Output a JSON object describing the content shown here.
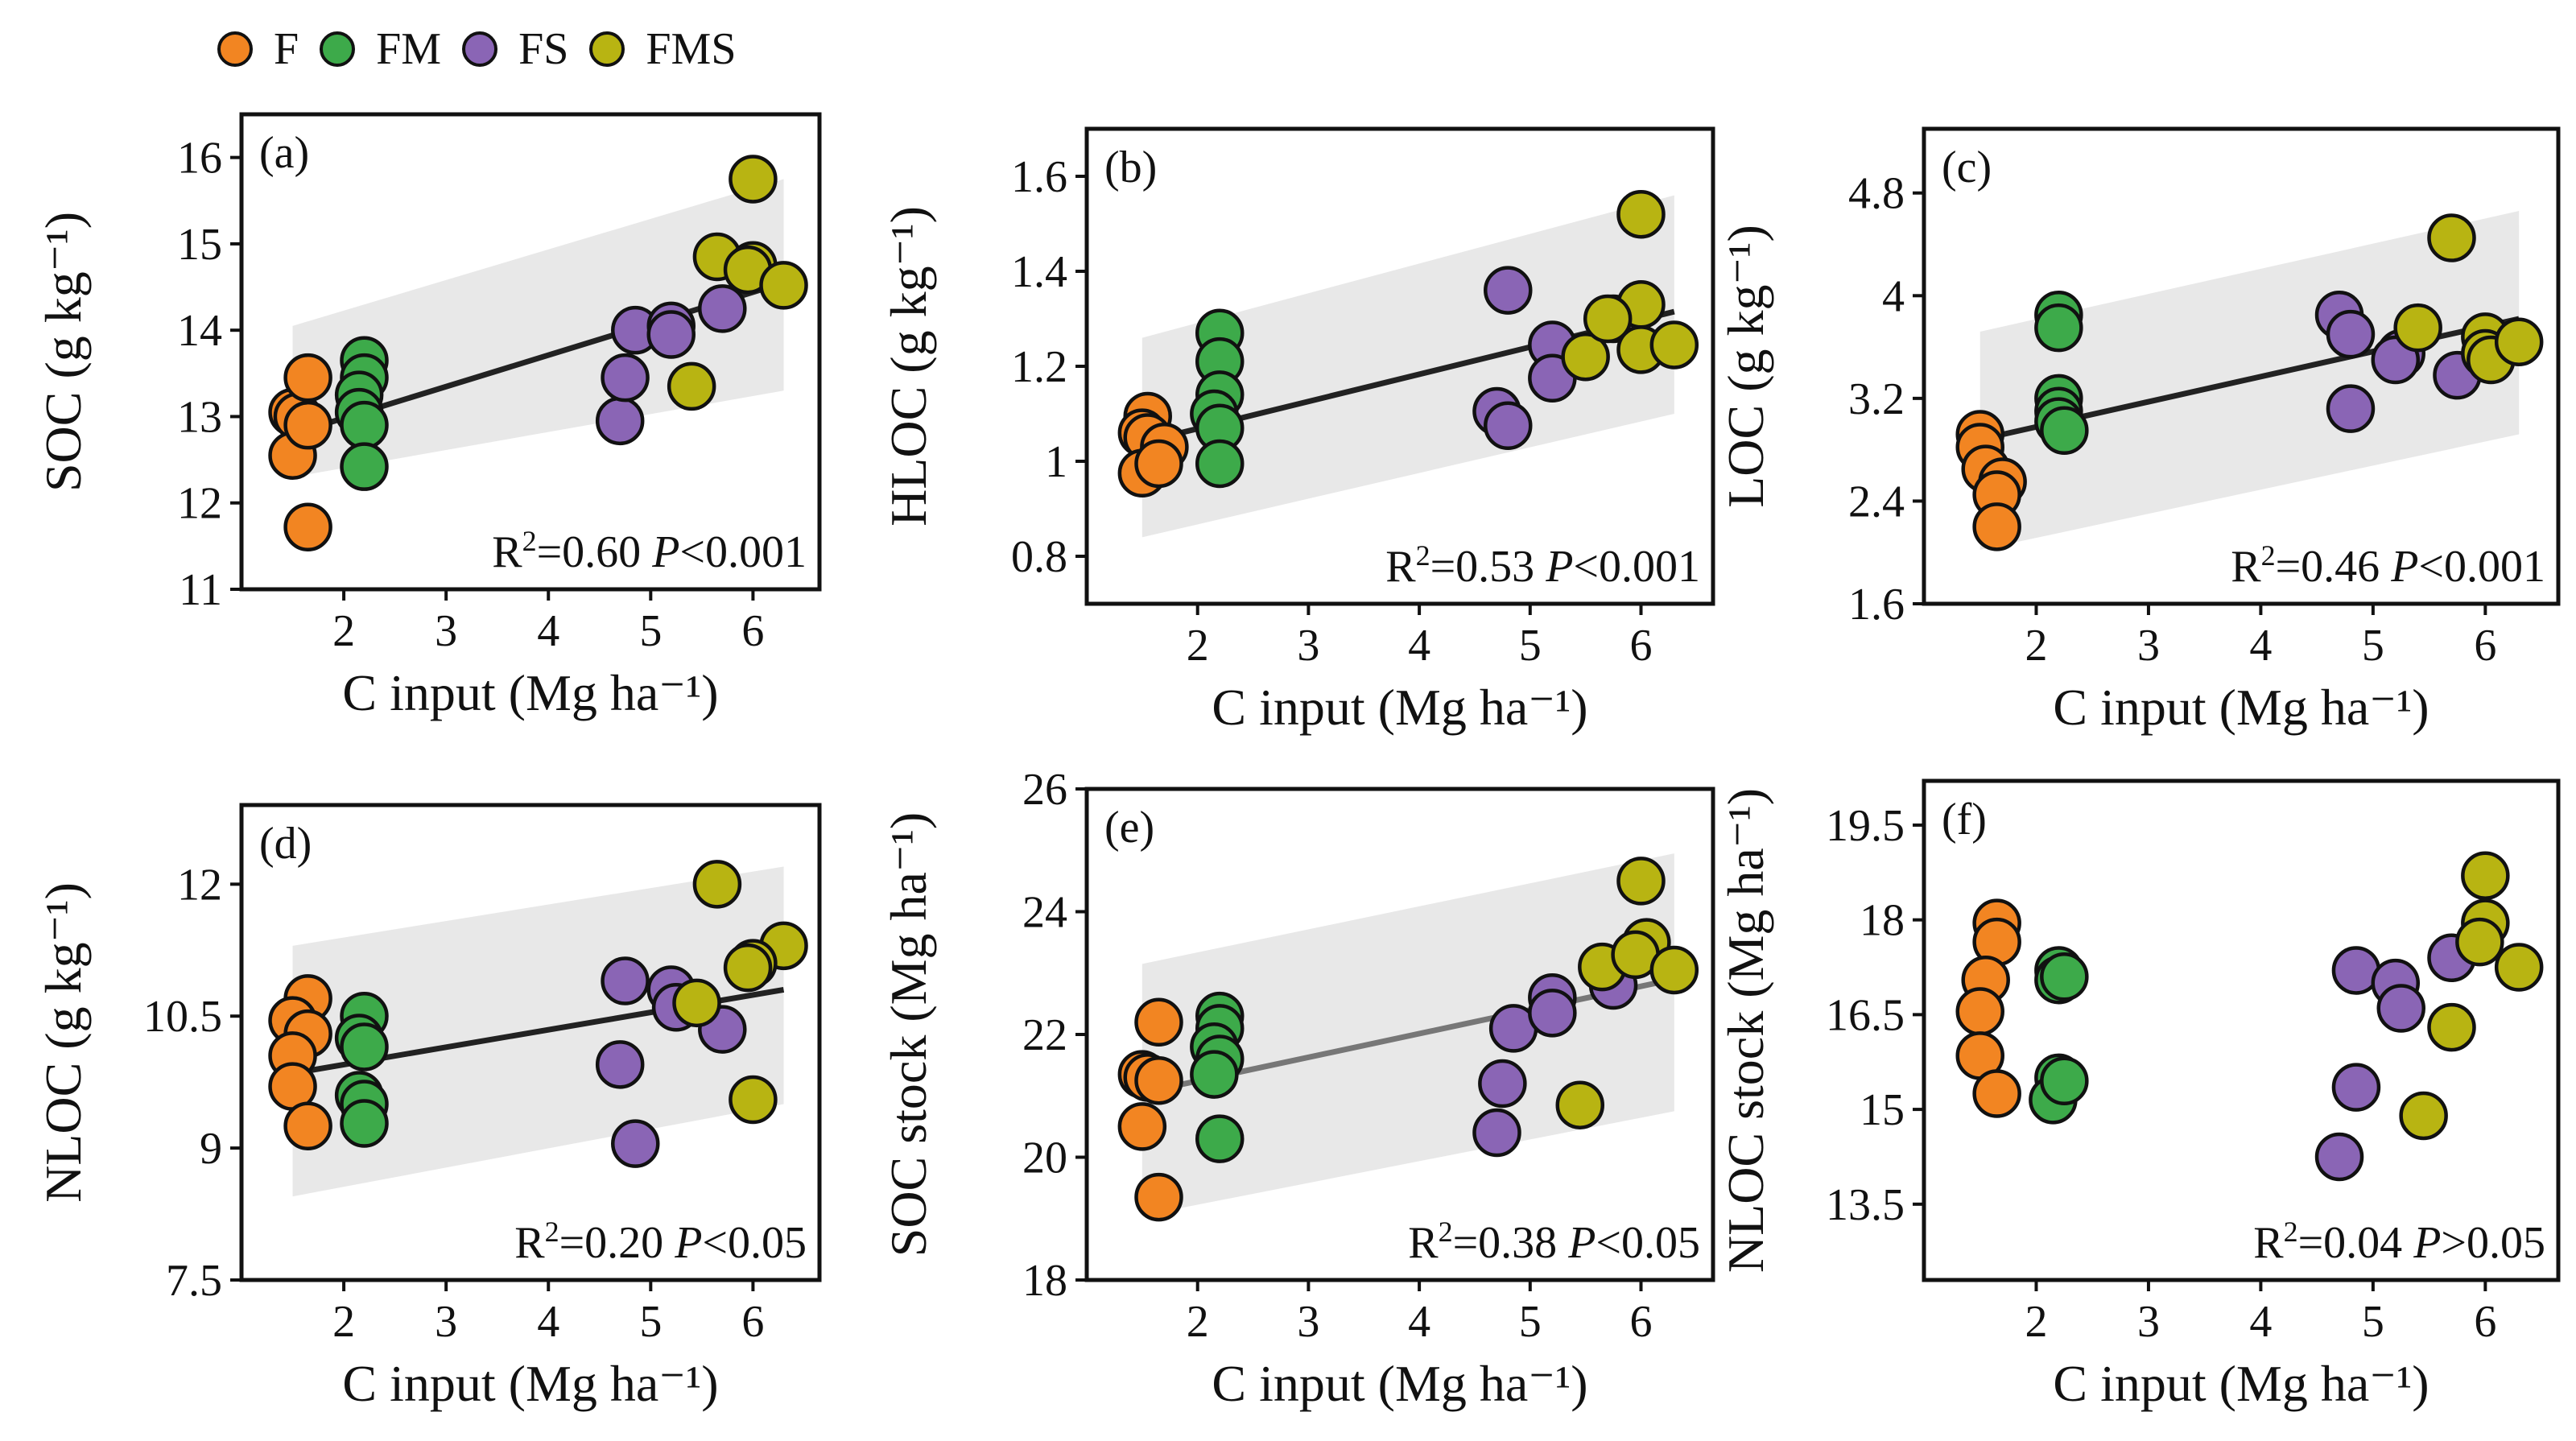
{
  "legend": [
    {
      "key": "F",
      "label": "F",
      "color": "#F28522"
    },
    {
      "key": "FM",
      "label": "FM",
      "color": "#3DAA4A"
    },
    {
      "key": "FS",
      "label": "FS",
      "color": "#8A65B5"
    },
    {
      "key": "FMS",
      "label": "FMS",
      "color": "#B8B412"
    }
  ],
  "chart_data": [
    {
      "panel": "(a)",
      "type": "scatter",
      "xlabel": "C input (Mg ha⁻¹)",
      "ylabel": "SOC (g kg⁻¹)",
      "xlim": [
        1.0,
        6.65
      ],
      "ylim": [
        11,
        16.5
      ],
      "xticks": [
        2,
        3,
        4,
        5,
        6
      ],
      "yticks": [
        11,
        12,
        13,
        14,
        15,
        16
      ],
      "r2": "0.60",
      "p": "<0.001",
      "fit": [
        [
          1.5,
          12.8
        ],
        [
          6.3,
          14.55
        ]
      ],
      "band": [
        [
          1.5,
          12.3,
          14.05
        ],
        [
          6.3,
          13.3,
          15.75
        ]
      ],
      "lineColor": "#222222",
      "points": [
        {
          "g": "F",
          "x": 1.5,
          "y": 13.05
        },
        {
          "g": "F",
          "x": 1.55,
          "y": 13.0
        },
        {
          "g": "F",
          "x": 1.5,
          "y": 12.55
        },
        {
          "g": "F",
          "x": 1.65,
          "y": 12.9
        },
        {
          "g": "F",
          "x": 1.65,
          "y": 13.45
        },
        {
          "g": "F",
          "x": 1.65,
          "y": 11.72
        },
        {
          "g": "FM",
          "x": 2.2,
          "y": 13.65
        },
        {
          "g": "FM",
          "x": 2.2,
          "y": 13.45
        },
        {
          "g": "FM",
          "x": 2.15,
          "y": 13.25
        },
        {
          "g": "FM",
          "x": 2.15,
          "y": 13.05
        },
        {
          "g": "FM",
          "x": 2.2,
          "y": 12.9
        },
        {
          "g": "FM",
          "x": 2.2,
          "y": 12.42
        },
        {
          "g": "FS",
          "x": 4.7,
          "y": 12.95
        },
        {
          "g": "FS",
          "x": 4.75,
          "y": 13.45
        },
        {
          "g": "FS",
          "x": 4.85,
          "y": 14.0
        },
        {
          "g": "FS",
          "x": 5.2,
          "y": 14.05
        },
        {
          "g": "FS",
          "x": 5.2,
          "y": 13.95
        },
        {
          "g": "FS",
          "x": 5.7,
          "y": 14.25
        },
        {
          "g": "FMS",
          "x": 5.4,
          "y": 13.35
        },
        {
          "g": "FMS",
          "x": 5.65,
          "y": 14.85
        },
        {
          "g": "FMS",
          "x": 6.0,
          "y": 15.75
        },
        {
          "g": "FMS",
          "x": 6.0,
          "y": 14.75
        },
        {
          "g": "FMS",
          "x": 5.95,
          "y": 14.7
        },
        {
          "g": "FMS",
          "x": 6.3,
          "y": 14.52
        }
      ]
    },
    {
      "panel": "(b)",
      "type": "scatter",
      "xlabel": "C input (Mg ha⁻¹)",
      "ylabel": "HLOC (g kg⁻¹)",
      "xlim": [
        1.0,
        6.65
      ],
      "ylim": [
        0.7,
        1.7
      ],
      "xticks": [
        2,
        3,
        4,
        5,
        6
      ],
      "yticks": [
        0.8,
        1.0,
        1.2,
        1.4,
        1.6
      ],
      "r2": "0.53",
      "p": "<0.001",
      "fit": [
        [
          1.5,
          1.04
        ],
        [
          6.3,
          1.315
        ]
      ],
      "band": [
        [
          1.5,
          0.84,
          1.26
        ],
        [
          6.3,
          1.1,
          1.56
        ]
      ],
      "lineColor": "#222222",
      "points": [
        {
          "g": "F",
          "x": 1.55,
          "y": 1.095
        },
        {
          "g": "F",
          "x": 1.5,
          "y": 1.06
        },
        {
          "g": "F",
          "x": 1.55,
          "y": 1.05
        },
        {
          "g": "F",
          "x": 1.7,
          "y": 1.03
        },
        {
          "g": "F",
          "x": 1.5,
          "y": 0.975
        },
        {
          "g": "F",
          "x": 1.65,
          "y": 0.995
        },
        {
          "g": "FM",
          "x": 2.2,
          "y": 1.27
        },
        {
          "g": "FM",
          "x": 2.2,
          "y": 1.21
        },
        {
          "g": "FM",
          "x": 2.2,
          "y": 1.14
        },
        {
          "g": "FM",
          "x": 2.15,
          "y": 1.1
        },
        {
          "g": "FM",
          "x": 2.2,
          "y": 1.07
        },
        {
          "g": "FM",
          "x": 2.2,
          "y": 0.995
        },
        {
          "g": "FS",
          "x": 4.8,
          "y": 1.36
        },
        {
          "g": "FS",
          "x": 4.7,
          "y": 1.105
        },
        {
          "g": "FS",
          "x": 4.8,
          "y": 1.075
        },
        {
          "g": "FS",
          "x": 5.2,
          "y": 1.245
        },
        {
          "g": "FS",
          "x": 5.2,
          "y": 1.175
        },
        {
          "g": "FS",
          "x": 5.75,
          "y": 1.3
        },
        {
          "g": "FMS",
          "x": 5.5,
          "y": 1.22
        },
        {
          "g": "FMS",
          "x": 6.0,
          "y": 1.52
        },
        {
          "g": "FMS",
          "x": 6.0,
          "y": 1.33
        },
        {
          "g": "FMS",
          "x": 5.7,
          "y": 1.3
        },
        {
          "g": "FMS",
          "x": 6.0,
          "y": 1.235
        },
        {
          "g": "FMS",
          "x": 6.3,
          "y": 1.245
        }
      ]
    },
    {
      "panel": "(c)",
      "type": "scatter",
      "xlabel": "C input (Mg ha⁻¹)",
      "ylabel": "LOC  (g kg⁻¹)",
      "xlim": [
        1.0,
        6.65
      ],
      "ylim": [
        1.6,
        5.3
      ],
      "xticks": [
        2,
        3,
        4,
        5,
        6
      ],
      "yticks": [
        1.6,
        2.4,
        3.2,
        4.0,
        4.8
      ],
      "r2": "0.46",
      "p": "<0.001",
      "fit": [
        [
          1.5,
          2.88
        ],
        [
          6.3,
          3.82
        ]
      ],
      "band": [
        [
          1.5,
          2.02,
          3.72
        ],
        [
          6.3,
          2.92,
          4.66
        ]
      ],
      "lineColor": "#222222",
      "points": [
        {
          "g": "F",
          "x": 1.5,
          "y": 2.92
        },
        {
          "g": "F",
          "x": 1.5,
          "y": 2.82
        },
        {
          "g": "F",
          "x": 1.55,
          "y": 2.65
        },
        {
          "g": "F",
          "x": 1.7,
          "y": 2.55
        },
        {
          "g": "F",
          "x": 1.65,
          "y": 2.45
        },
        {
          "g": "F",
          "x": 1.65,
          "y": 2.2
        },
        {
          "g": "FM",
          "x": 2.2,
          "y": 3.85
        },
        {
          "g": "FM",
          "x": 2.2,
          "y": 3.75
        },
        {
          "g": "FM",
          "x": 2.2,
          "y": 3.2
        },
        {
          "g": "FM",
          "x": 2.2,
          "y": 3.1
        },
        {
          "g": "FM",
          "x": 2.2,
          "y": 3.02
        },
        {
          "g": "FM",
          "x": 2.25,
          "y": 2.95
        },
        {
          "g": "FS",
          "x": 4.7,
          "y": 3.85
        },
        {
          "g": "FS",
          "x": 4.8,
          "y": 3.7
        },
        {
          "g": "FS",
          "x": 5.25,
          "y": 3.55
        },
        {
          "g": "FS",
          "x": 5.2,
          "y": 3.5
        },
        {
          "g": "FS",
          "x": 4.8,
          "y": 3.12
        },
        {
          "g": "FS",
          "x": 5.75,
          "y": 3.38
        },
        {
          "g": "FMS",
          "x": 5.4,
          "y": 3.75
        },
        {
          "g": "FMS",
          "x": 5.7,
          "y": 4.45
        },
        {
          "g": "FMS",
          "x": 6.0,
          "y": 3.68
        },
        {
          "g": "FMS",
          "x": 6.0,
          "y": 3.55
        },
        {
          "g": "FMS",
          "x": 6.05,
          "y": 3.5
        },
        {
          "g": "FMS",
          "x": 6.3,
          "y": 3.64
        }
      ]
    },
    {
      "panel": "(d)",
      "type": "scatter",
      "xlabel": "C input (Mg ha⁻¹)",
      "ylabel": "NLOC (g kg⁻¹)",
      "xlim": [
        1.0,
        6.65
      ],
      "ylim": [
        7.5,
        12.9
      ],
      "xticks": [
        2,
        3,
        4,
        5,
        6
      ],
      "yticks": [
        7.5,
        9.0,
        10.5,
        12.0
      ],
      "r2": "0.20",
      "p": "<0.05",
      "fit": [
        [
          1.5,
          9.85
        ],
        [
          6.3,
          10.8
        ]
      ],
      "band": [
        [
          1.5,
          8.45,
          11.3
        ],
        [
          6.3,
          9.5,
          12.2
        ]
      ],
      "lineColor": "#222222",
      "points": [
        {
          "g": "F",
          "x": 1.65,
          "y": 10.7
        },
        {
          "g": "F",
          "x": 1.5,
          "y": 10.45
        },
        {
          "g": "F",
          "x": 1.65,
          "y": 10.3
        },
        {
          "g": "F",
          "x": 1.5,
          "y": 10.05
        },
        {
          "g": "F",
          "x": 1.5,
          "y": 9.7
        },
        {
          "g": "F",
          "x": 1.65,
          "y": 9.25
        },
        {
          "g": "FM",
          "x": 2.2,
          "y": 10.5
        },
        {
          "g": "FM",
          "x": 2.15,
          "y": 10.25
        },
        {
          "g": "FM",
          "x": 2.2,
          "y": 10.15
        },
        {
          "g": "FM",
          "x": 2.15,
          "y": 9.6
        },
        {
          "g": "FM",
          "x": 2.2,
          "y": 9.5
        },
        {
          "g": "FM",
          "x": 2.2,
          "y": 9.28
        },
        {
          "g": "FS",
          "x": 4.75,
          "y": 10.9
        },
        {
          "g": "FS",
          "x": 5.2,
          "y": 10.8
        },
        {
          "g": "FS",
          "x": 5.25,
          "y": 10.6
        },
        {
          "g": "FS",
          "x": 4.7,
          "y": 9.95
        },
        {
          "g": "FS",
          "x": 4.85,
          "y": 9.05
        },
        {
          "g": "FS",
          "x": 5.7,
          "y": 10.35
        },
        {
          "g": "FMS",
          "x": 5.45,
          "y": 10.65
        },
        {
          "g": "FMS",
          "x": 5.65,
          "y": 12.0
        },
        {
          "g": "FMS",
          "x": 6.3,
          "y": 11.3
        },
        {
          "g": "FMS",
          "x": 6.0,
          "y": 11.1
        },
        {
          "g": "FMS",
          "x": 6.0,
          "y": 9.55
        },
        {
          "g": "FMS",
          "x": 5.95,
          "y": 11.05
        }
      ]
    },
    {
      "panel": "(e)",
      "type": "scatter",
      "xlabel": "C input (Mg ha⁻¹)",
      "ylabel": "SOC stock (Mg ha⁻¹)",
      "xlim": [
        1.0,
        6.65
      ],
      "ylim": [
        18,
        26
      ],
      "xticks": [
        2,
        3,
        4,
        5,
        6
      ],
      "yticks": [
        18,
        20,
        22,
        24,
        26
      ],
      "r2": "0.38",
      "p": "<0.05",
      "fit": [
        [
          1.5,
          21.05
        ],
        [
          6.3,
          22.9
        ]
      ],
      "band": [
        [
          1.5,
          19.05,
          23.15
        ],
        [
          6.3,
          20.75,
          24.95
        ]
      ],
      "lineColor": "#777777",
      "points": [
        {
          "g": "F",
          "x": 1.5,
          "y": 21.35
        },
        {
          "g": "F",
          "x": 1.55,
          "y": 21.3
        },
        {
          "g": "F",
          "x": 1.65,
          "y": 22.2
        },
        {
          "g": "F",
          "x": 1.65,
          "y": 21.25
        },
        {
          "g": "F",
          "x": 1.5,
          "y": 20.5
        },
        {
          "g": "F",
          "x": 1.65,
          "y": 19.35
        },
        {
          "g": "FM",
          "x": 2.2,
          "y": 22.3
        },
        {
          "g": "FM",
          "x": 2.2,
          "y": 22.1
        },
        {
          "g": "FM",
          "x": 2.15,
          "y": 21.8
        },
        {
          "g": "FM",
          "x": 2.2,
          "y": 21.6
        },
        {
          "g": "FM",
          "x": 2.15,
          "y": 21.35
        },
        {
          "g": "FM",
          "x": 2.2,
          "y": 20.3
        },
        {
          "g": "FS",
          "x": 4.85,
          "y": 22.1
        },
        {
          "g": "FS",
          "x": 5.2,
          "y": 22.6
        },
        {
          "g": "FS",
          "x": 5.2,
          "y": 22.35
        },
        {
          "g": "FS",
          "x": 4.75,
          "y": 21.2
        },
        {
          "g": "FS",
          "x": 4.7,
          "y": 20.4
        },
        {
          "g": "FS",
          "x": 5.75,
          "y": 22.8
        },
        {
          "g": "FMS",
          "x": 5.45,
          "y": 20.85
        },
        {
          "g": "FMS",
          "x": 5.65,
          "y": 23.1
        },
        {
          "g": "FMS",
          "x": 6.0,
          "y": 24.5
        },
        {
          "g": "FMS",
          "x": 6.05,
          "y": 23.5
        },
        {
          "g": "FMS",
          "x": 5.95,
          "y": 23.3
        },
        {
          "g": "FMS",
          "x": 6.3,
          "y": 23.05
        }
      ]
    },
    {
      "panel": "(f)",
      "type": "scatter",
      "xlabel": "C input (Mg ha⁻¹)",
      "ylabel": "NLOC stock (Mg ha⁻¹)",
      "xlim": [
        1.0,
        6.65
      ],
      "ylim": [
        12.3,
        20.2
      ],
      "xticks": [
        2,
        3,
        4,
        5,
        6
      ],
      "yticks": [
        13.5,
        15.0,
        16.5,
        18.0,
        19.5
      ],
      "r2": "0.04",
      "p": ">0.05",
      "fit": null,
      "band": null,
      "lineColor": "#222222",
      "points": [
        {
          "g": "F",
          "x": 1.65,
          "y": 17.95
        },
        {
          "g": "F",
          "x": 1.65,
          "y": 17.65
        },
        {
          "g": "F",
          "x": 1.55,
          "y": 17.05
        },
        {
          "g": "F",
          "x": 1.5,
          "y": 16.55
        },
        {
          "g": "F",
          "x": 1.5,
          "y": 15.85
        },
        {
          "g": "F",
          "x": 1.65,
          "y": 15.25
        },
        {
          "g": "FM",
          "x": 2.2,
          "y": 17.2
        },
        {
          "g": "FM",
          "x": 2.2,
          "y": 17.05
        },
        {
          "g": "FM",
          "x": 2.25,
          "y": 17.1
        },
        {
          "g": "FM",
          "x": 2.2,
          "y": 15.5
        },
        {
          "g": "FM",
          "x": 2.15,
          "y": 15.15
        },
        {
          "g": "FM",
          "x": 2.25,
          "y": 15.45
        },
        {
          "g": "FS",
          "x": 4.85,
          "y": 17.2
        },
        {
          "g": "FS",
          "x": 5.2,
          "y": 17.0
        },
        {
          "g": "FS",
          "x": 5.25,
          "y": 16.6
        },
        {
          "g": "FS",
          "x": 4.85,
          "y": 15.35
        },
        {
          "g": "FS",
          "x": 4.7,
          "y": 14.25
        },
        {
          "g": "FS",
          "x": 5.7,
          "y": 17.4
        },
        {
          "g": "FMS",
          "x": 5.45,
          "y": 14.9
        },
        {
          "g": "FMS",
          "x": 5.7,
          "y": 16.3
        },
        {
          "g": "FMS",
          "x": 6.0,
          "y": 18.7
        },
        {
          "g": "FMS",
          "x": 6.0,
          "y": 17.95
        },
        {
          "g": "FMS",
          "x": 5.95,
          "y": 17.65
        },
        {
          "g": "FMS",
          "x": 6.3,
          "y": 17.25
        }
      ]
    }
  ]
}
